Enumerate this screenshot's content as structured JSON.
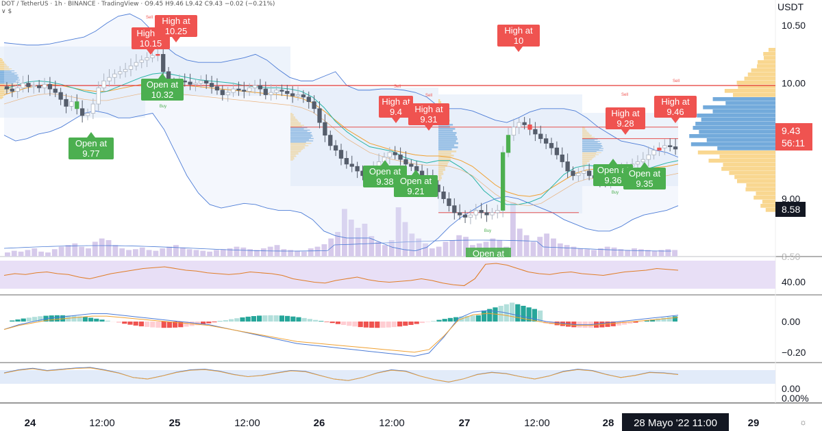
{
  "header": {
    "line1_pre": "DOT / TetherUS · 1h · BINANCE · TradingView · O",
    "line1_values": "9.45 H9.46 L9.42 C9.43 −0.02 (−0.21%)",
    "line2": "∨ $"
  },
  "price_axis": {
    "unit": "USDT",
    "ticks": [
      "10.50",
      "10.00",
      "9.50",
      "9.00"
    ],
    "last_price": "9.43",
    "countdown": "56:11",
    "low_tag": "8.58",
    "hidden_tick": "8.50"
  },
  "time_axis": {
    "labels": [
      "24",
      "12:00",
      "25",
      "12:00",
      "26",
      "12:00",
      "27",
      "12:00",
      "28",
      "29"
    ],
    "cursor_label": "28 Mayo '22   11:00"
  },
  "rsi_axis": {
    "tick": "40.00"
  },
  "macd_axis": {
    "ticks": [
      "0.00",
      "−0.20"
    ]
  },
  "stoch_axis": {
    "ticks": [
      "0.00",
      "0.00%"
    ]
  },
  "signals": {
    "high_labels": [
      {
        "line1": "High at",
        "line2": "10.15"
      },
      {
        "line1": "High at",
        "line2": "10.25"
      },
      {
        "line1": "High at",
        "line2": "10"
      },
      {
        "line1": "High at",
        "line2": "9.4"
      },
      {
        "line1": "High at",
        "line2": "9.31"
      },
      {
        "line1": "High at",
        "line2": "9.28"
      },
      {
        "line1": "High at",
        "line2": "9.46"
      }
    ],
    "open_labels": [
      {
        "line1": "Open at",
        "line2": "10.32"
      },
      {
        "line1": "Open at",
        "line2": "9.77"
      },
      {
        "line1": "Open at",
        "line2": "9.38"
      },
      {
        "line1": "Open at",
        "line2": "9.21"
      },
      {
        "line1": "Open at",
        "line2": "9.36"
      },
      {
        "line1": "Open at",
        "line2": "9.35"
      },
      {
        "line1": "Open at",
        "line2": ""
      }
    ],
    "small_sell": "Sell",
    "small_buy": "Buy"
  },
  "colors": {
    "up": "#aab2bf",
    "up_fill": "#ffffff",
    "down": "#555d6b",
    "bull_signal": "#4caf50",
    "bear_signal": "#ef5350",
    "bb_line": "#4b7bd6",
    "bb_fill": "#dfe9f8",
    "ema_orange": "#f0a030",
    "ema_teal": "#26b3a6",
    "resistance": "#e53935",
    "volume": "#d1c4e9",
    "rsi_band": "#e6dcf5",
    "rsi_line": "#e07d27",
    "macd_up": "#26a69a",
    "macd_up_light": "#b2dfdb",
    "macd_down": "#ef5350",
    "macd_down_light": "#ffcdd2",
    "vprofile_orange": "#f7c96b",
    "vprofile_blue": "#5b9bd5"
  },
  "chart_data": {
    "type": "candlestick",
    "symbol": "DOT / TetherUS",
    "interval": "1h",
    "exchange": "BINANCE",
    "unit": "USDT",
    "y_range": [
      8.5,
      10.72
    ],
    "grid": false,
    "x_day_labels": [
      "24",
      "25",
      "26",
      "27",
      "28",
      "29"
    ],
    "last_close": 9.43,
    "resistance_level": 9.98,
    "support_level": 8.88,
    "closes": [
      9.95,
      9.93,
      9.96,
      10.0,
      9.97,
      9.98,
      9.96,
      9.99,
      9.95,
      9.92,
      9.86,
      9.8,
      9.84,
      9.78,
      9.72,
      9.74,
      9.82,
      9.96,
      10.02,
      10.05,
      10.08,
      10.1,
      10.12,
      10.15,
      10.18,
      10.2,
      10.22,
      10.24,
      10.25,
      10.1,
      10.0,
      9.98,
      10.02,
      10.01,
      9.99,
      10.0,
      10.02,
      10.0,
      9.97,
      9.94,
      9.9,
      9.92,
      9.95,
      9.94,
      9.93,
      9.96,
      9.98,
      9.95,
      9.9,
      9.92,
      9.94,
      9.93,
      9.91,
      9.89,
      9.9,
      9.88,
      9.84,
      9.78,
      9.66,
      9.55,
      9.46,
      9.42,
      9.35,
      9.3,
      9.28,
      9.24,
      9.2,
      9.22,
      9.26,
      9.32,
      9.36,
      9.4,
      9.38,
      9.34,
      9.3,
      9.28,
      9.24,
      9.2,
      9.18,
      9.12,
      9.06,
      9.0,
      8.94,
      8.88,
      8.86,
      8.84,
      8.86,
      8.9,
      8.88,
      8.86,
      8.88,
      8.9,
      9.4,
      9.55,
      9.62,
      9.66,
      9.64,
      9.6,
      9.56,
      9.52,
      9.48,
      9.44,
      9.38,
      9.32,
      9.24,
      9.2,
      9.22,
      9.24,
      9.2,
      9.18,
      9.16,
      9.14,
      9.18,
      9.22,
      9.24,
      9.28,
      9.3,
      9.32,
      9.34,
      9.38,
      9.42,
      9.44,
      9.46,
      9.45,
      9.43
    ],
    "bollinger": {
      "upper": [
        10.35,
        10.34,
        10.33,
        10.33,
        10.34,
        10.36,
        10.38,
        10.4,
        10.45,
        10.52,
        10.58,
        10.6,
        10.55,
        10.45,
        10.33,
        10.25,
        10.2,
        10.18,
        10.18,
        10.18,
        10.2,
        10.22,
        10.25,
        10.2,
        10.12,
        10.05,
        10.02,
        10.02,
        10.06,
        10.1,
        9.98,
        9.94,
        9.94,
        9.95,
        9.95,
        9.94,
        9.92,
        9.88,
        9.8,
        9.78,
        9.78,
        9.76,
        9.72,
        9.68,
        9.66,
        9.7,
        9.75,
        9.78,
        9.78,
        9.78,
        9.76,
        9.7,
        9.62,
        9.56,
        9.5,
        9.48,
        9.46,
        9.42,
        9.4,
        9.36
      ],
      "lower": [
        9.55,
        9.5,
        9.52,
        9.56,
        9.58,
        9.62,
        9.68,
        9.74,
        9.76,
        9.74,
        9.7,
        9.7,
        9.72,
        9.74,
        9.6,
        9.4,
        9.2,
        9.05,
        8.95,
        8.92,
        8.94,
        8.96,
        8.95,
        8.92,
        8.9,
        8.9,
        8.88,
        8.82,
        8.72,
        8.68,
        8.66,
        8.66,
        8.66,
        8.62,
        8.58,
        8.56,
        8.55,
        8.58,
        8.66,
        8.76,
        8.84,
        8.9,
        8.96,
        9.0,
        9.02,
        9.0,
        8.96,
        8.92,
        8.88,
        8.82,
        8.78,
        8.74,
        8.72,
        8.72,
        8.76,
        8.82,
        8.86,
        8.88,
        8.9,
        8.94
      ]
    },
    "ema_fast": [
      9.92,
      9.95,
      9.98,
      9.99,
      9.98,
      9.96,
      9.93,
      9.9,
      9.88,
      9.9,
      9.94,
      9.98,
      10.02,
      10.05,
      10.06,
      10.04,
      10.02,
      10.0,
      9.99,
      9.98,
      9.97,
      9.95,
      9.94,
      9.93,
      9.93,
      9.92,
      9.9,
      9.85,
      9.76,
      9.64,
      9.55,
      9.48,
      9.42,
      9.4,
      9.38,
      9.33,
      9.3,
      9.28,
      9.3,
      9.3,
      9.24,
      9.16,
      9.04,
      8.96,
      8.92,
      8.92,
      8.94,
      8.98,
      9.08,
      9.18,
      9.24,
      9.26,
      9.25,
      9.22,
      9.2,
      9.2,
      9.22,
      9.25,
      9.28,
      9.3
    ],
    "ema_slow": [
      9.9,
      9.93,
      9.96,
      9.98,
      9.99,
      9.98,
      9.96,
      9.94,
      9.93,
      9.93,
      9.95,
      9.97,
      9.99,
      10.0,
      10.0,
      9.99,
      9.98,
      9.97,
      9.96,
      9.95,
      9.94,
      9.93,
      9.92,
      9.91,
      9.9,
      9.89,
      9.87,
      9.83,
      9.76,
      9.68,
      9.6,
      9.54,
      9.48,
      9.45,
      9.42,
      9.4,
      9.38,
      9.37,
      9.37,
      9.36,
      9.33,
      9.28,
      9.2,
      9.12,
      9.06,
      9.03,
      9.02,
      9.04,
      9.1,
      9.16,
      9.22,
      9.25,
      9.26,
      9.26,
      9.25,
      9.25,
      9.26,
      9.27,
      9.28,
      9.3
    ],
    "volume": [
      5,
      7,
      6,
      8,
      10,
      6,
      5,
      9,
      12,
      14,
      16,
      12,
      10,
      18,
      22,
      20,
      14,
      10,
      8,
      9,
      11,
      8,
      7,
      10,
      12,
      14,
      11,
      9,
      8,
      7,
      6,
      8,
      9,
      10,
      12,
      11,
      9,
      8,
      10,
      12,
      14,
      9,
      8,
      7,
      6,
      10,
      12,
      15,
      22,
      30,
      58,
      45,
      35,
      40,
      25,
      18,
      14,
      20,
      60,
      42,
      28,
      22,
      16,
      10,
      12,
      18,
      20,
      26,
      24,
      14,
      16,
      18,
      22,
      20,
      12,
      66,
      34,
      26,
      18,
      24,
      28,
      22,
      16,
      14,
      12,
      10,
      9,
      8,
      10,
      12,
      11,
      9,
      8,
      10,
      9,
      8,
      7,
      8,
      9,
      8
    ],
    "rsi": [
      42,
      44,
      43,
      45,
      46,
      44,
      43,
      40,
      38,
      41,
      44,
      46,
      48,
      50,
      51,
      52,
      50,
      48,
      47,
      45,
      44,
      43,
      44,
      46,
      45,
      44,
      42,
      38,
      36,
      34,
      33,
      36,
      38,
      40,
      37,
      35,
      34,
      35,
      36,
      38,
      36,
      33,
      31,
      30,
      38,
      55,
      56,
      54,
      50,
      46,
      44,
      43,
      45,
      46,
      44,
      43,
      42,
      44,
      46,
      47,
      48,
      50,
      49,
      48
    ],
    "macd": [
      -0.05,
      -0.02,
      0.0,
      0.02,
      0.03,
      0.04,
      0.05,
      0.05,
      0.04,
      0.03,
      0.02,
      0.01,
      0.0,
      -0.01,
      -0.02,
      -0.04,
      -0.06,
      -0.08,
      -0.1,
      -0.12,
      -0.14,
      -0.15,
      -0.16,
      -0.17,
      -0.18,
      -0.19,
      -0.2,
      -0.21,
      -0.22,
      -0.2,
      -0.1,
      0.02,
      0.06,
      0.07,
      0.06,
      0.04,
      0.02,
      0.0,
      -0.01,
      -0.02,
      -0.02,
      -0.01,
      0.0,
      0.01,
      0.02,
      0.03,
      0.04
    ],
    "stoch_k": [
      60,
      70,
      75,
      68,
      72,
      76,
      78,
      70,
      60,
      45,
      40,
      50,
      62,
      70,
      72,
      66,
      55,
      48,
      52,
      60,
      68,
      65,
      52,
      40,
      35,
      45,
      60,
      70,
      66,
      50,
      38,
      30,
      40,
      55,
      62,
      58,
      48,
      40,
      50,
      65,
      72,
      68,
      55,
      45,
      52,
      62,
      60,
      55
    ]
  }
}
